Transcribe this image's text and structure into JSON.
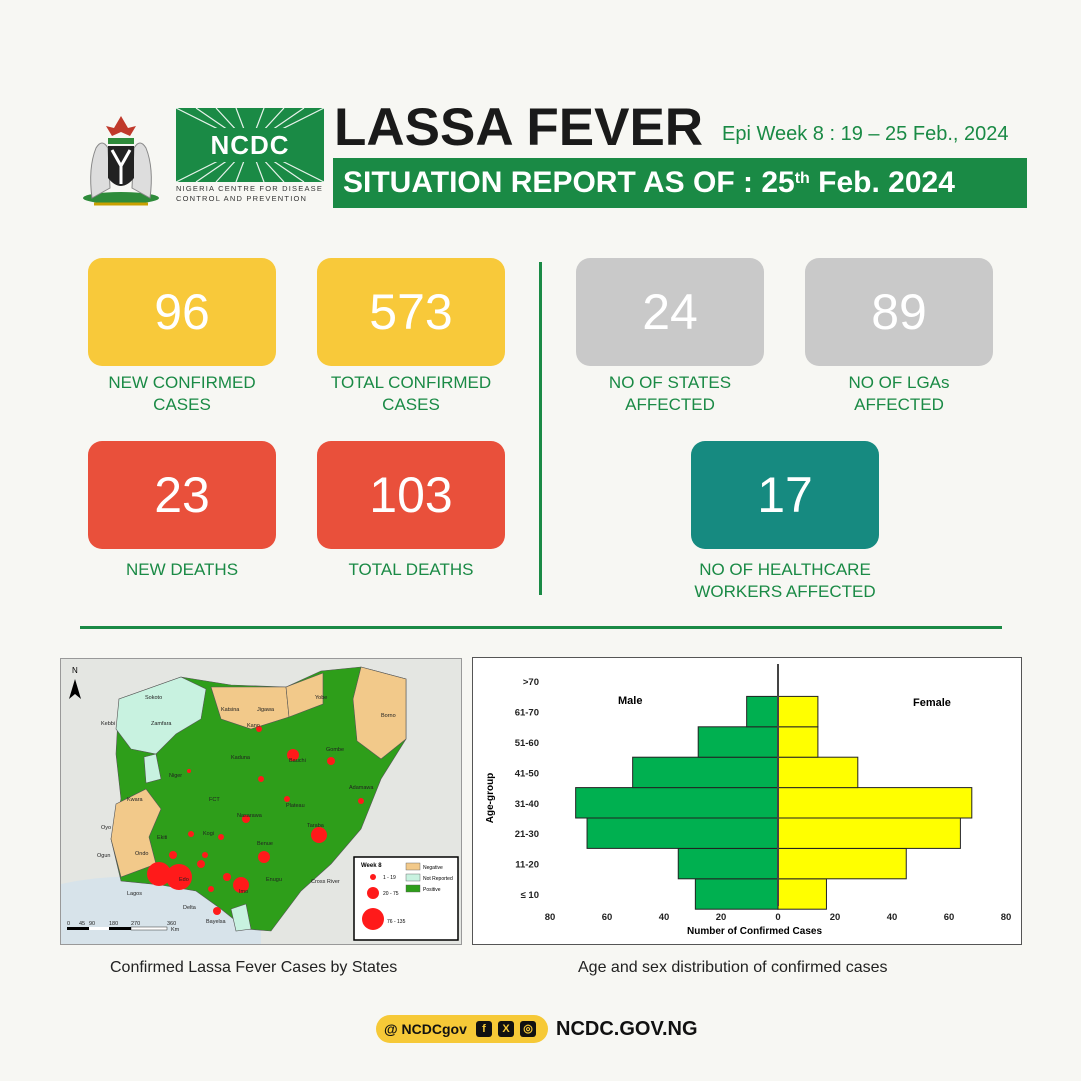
{
  "header": {
    "org_abbr": "NCDC",
    "org_full_line1": "NIGERIA CENTRE FOR DISEASE",
    "org_full_line2": "CONTROL AND PREVENTION",
    "title": "LASSA FEVER",
    "epi_week": "Epi Week 8 : 19 – 25 Feb., 2024",
    "sitrep_prefix": "SITUATION REPORT AS OF : 25",
    "sitrep_sup": "th",
    "sitrep_suffix": " Feb. 2024",
    "brand_color": "#1a8a45"
  },
  "stats": {
    "new_confirmed": {
      "value": "96",
      "label1": "NEW CONFIRMED",
      "label2": "CASES"
    },
    "total_confirmed": {
      "value": "573",
      "label1": "TOTAL CONFIRMED",
      "label2": "CASES"
    },
    "states_affected": {
      "value": "24",
      "label1": "NO OF STATES",
      "label2": "AFFECTED"
    },
    "lgas_affected": {
      "value": "89",
      "label1": "NO OF LGAs",
      "label2": "AFFECTED"
    },
    "new_deaths": {
      "value": "23",
      "label1": "NEW DEATHS"
    },
    "total_deaths": {
      "value": "103",
      "label1": "TOTAL DEATHS"
    },
    "hcw_affected": {
      "value": "17",
      "label1": "NO OF HEALTHCARE",
      "label2": "WORKERS AFFECTED"
    }
  },
  "map": {
    "caption": "Confirmed Lassa Fever Cases by States",
    "north": "N",
    "legend_title": "Week 8",
    "legend_negative": "Negative",
    "legend_not_reported": "Not Reported",
    "legend_positive": "Positive",
    "legend_b1": "1 - 19",
    "legend_b2": "20 - 75",
    "legend_b3": "76 - 135",
    "scale_ticks": [
      "0",
      "45",
      "90",
      "180",
      "270",
      "360"
    ],
    "scale_unit": "Km",
    "states": [
      "Sokoto",
      "Kebbi",
      "Zamfara",
      "Katsina",
      "Jigawa",
      "Yobe",
      "Borno",
      "Kano",
      "Bauchi",
      "Gombe",
      "Kaduna",
      "Niger",
      "Adamawa",
      "Kwara",
      "FCT",
      "Plateau",
      "Nasarawa",
      "Taraba",
      "Oyo",
      "Kogi",
      "Benue",
      "Ogun",
      "Ekiti",
      "Ondo",
      "Edo",
      "Enugu",
      "Delta",
      "Imo",
      "Bayelsa",
      "Cross River",
      "Lagos"
    ],
    "colors": {
      "negative": "#f2c98a",
      "not_reported": "#c8f2e0",
      "positive": "#2e9e1a",
      "bubble": "#ff1a1a"
    }
  },
  "chart_data": {
    "type": "bar",
    "caption": "Age and sex distribution of confirmed cases",
    "categories": [
      "≤ 10",
      "11-20",
      "21-30",
      "31-40",
      "41-50",
      "51-60",
      "61-70",
      ">70"
    ],
    "series": [
      {
        "name": "Male",
        "values": [
          29,
          35,
          67,
          71,
          51,
          28,
          11,
          0
        ],
        "color": "#00b050"
      },
      {
        "name": "Female",
        "values": [
          17,
          45,
          64,
          68,
          28,
          14,
          14,
          0
        ],
        "color": "#ffff00"
      }
    ],
    "xlabel": "Number of Confirmed Cases",
    "ylabel": "Age-group",
    "xticks": [
      "80",
      "60",
      "40",
      "20",
      "0",
      "20",
      "40",
      "60",
      "80"
    ],
    "xlim": [
      -80,
      80
    ]
  },
  "footer": {
    "handle": "@ NCDCgov",
    "icons": [
      "facebook-icon",
      "x-icon",
      "instagram-icon"
    ],
    "website": "NCDC.GOV.NG"
  }
}
